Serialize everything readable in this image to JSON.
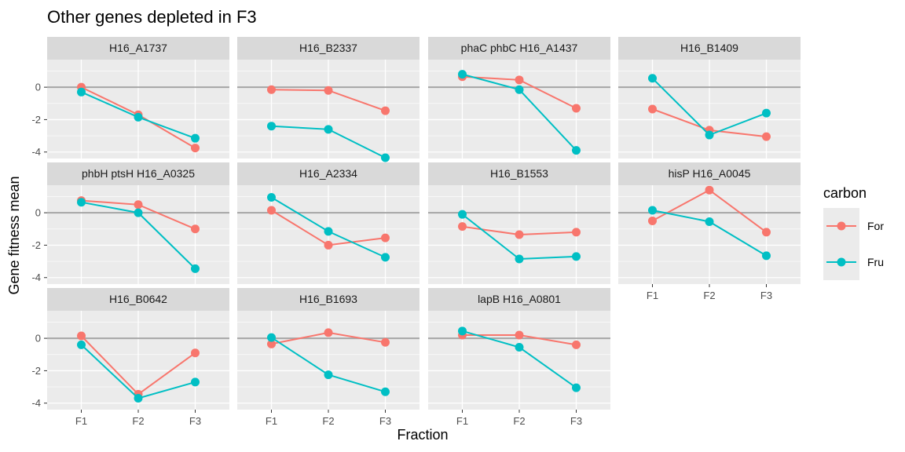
{
  "chart_data": {
    "type": "line",
    "title": "Other genes depleted in F3",
    "xlabel": "Fraction",
    "ylabel": "Gene fitness mean",
    "categories": [
      "F1",
      "F2",
      "F3"
    ],
    "ylim": [
      -4.4,
      1.7
    ],
    "yticks": [
      0,
      -2,
      -4
    ],
    "reference_line_y": 0,
    "legend": {
      "title": "carbon",
      "position": "right",
      "entries": [
        {
          "name": "For",
          "color": "#F8766D"
        },
        {
          "name": "Fru",
          "color": "#00BFC4"
        }
      ]
    },
    "panels": [
      {
        "title": "H16_A1737",
        "series": [
          {
            "name": "For",
            "values": [
              0.0,
              -1.7,
              -3.75
            ]
          },
          {
            "name": "Fru",
            "values": [
              -0.3,
              -1.85,
              -3.15
            ]
          }
        ]
      },
      {
        "title": "H16_B2337",
        "series": [
          {
            "name": "For",
            "values": [
              -0.15,
              -0.2,
              -1.45
            ]
          },
          {
            "name": "Fru",
            "values": [
              -2.4,
              -2.6,
              -4.35
            ]
          }
        ]
      },
      {
        "title": "phaC phbC H16_A1437",
        "series": [
          {
            "name": "For",
            "values": [
              0.65,
              0.45,
              -1.3
            ]
          },
          {
            "name": "Fru",
            "values": [
              0.8,
              -0.15,
              -3.9
            ]
          }
        ]
      },
      {
        "title": "H16_B1409",
        "series": [
          {
            "name": "For",
            "values": [
              -1.35,
              -2.65,
              -3.05
            ]
          },
          {
            "name": "Fru",
            "values": [
              0.55,
              -2.95,
              -1.6
            ]
          }
        ]
      },
      {
        "title": "phbH ptsH H16_A0325",
        "series": [
          {
            "name": "For",
            "values": [
              0.75,
              0.5,
              -1.0
            ]
          },
          {
            "name": "Fru",
            "values": [
              0.65,
              0.0,
              -3.45
            ]
          }
        ]
      },
      {
        "title": "H16_A2334",
        "series": [
          {
            "name": "For",
            "values": [
              0.15,
              -2.0,
              -1.55
            ]
          },
          {
            "name": "Fru",
            "values": [
              0.95,
              -1.15,
              -2.75
            ]
          }
        ]
      },
      {
        "title": "H16_B1553",
        "series": [
          {
            "name": "For",
            "values": [
              -0.85,
              -1.35,
              -1.2
            ]
          },
          {
            "name": "Fru",
            "values": [
              -0.1,
              -2.85,
              -2.7
            ]
          }
        ]
      },
      {
        "title": "hisP H16_A0045",
        "series": [
          {
            "name": "For",
            "values": [
              -0.5,
              1.4,
              -1.2
            ]
          },
          {
            "name": "Fru",
            "values": [
              0.15,
              -0.55,
              -2.65
            ]
          }
        ]
      },
      {
        "title": "H16_B0642",
        "series": [
          {
            "name": "For",
            "values": [
              0.15,
              -3.45,
              -0.9
            ]
          },
          {
            "name": "Fru",
            "values": [
              -0.4,
              -3.7,
              -2.7
            ]
          }
        ]
      },
      {
        "title": "H16_B1693",
        "series": [
          {
            "name": "For",
            "values": [
              -0.35,
              0.35,
              -0.25
            ]
          },
          {
            "name": "Fru",
            "values": [
              0.05,
              -2.25,
              -3.3
            ]
          }
        ]
      },
      {
        "title": "lapB H16_A0801",
        "series": [
          {
            "name": "For",
            "values": [
              0.2,
              0.2,
              -0.4
            ]
          },
          {
            "name": "Fru",
            "values": [
              0.45,
              -0.55,
              -3.05
            ]
          }
        ]
      }
    ]
  }
}
